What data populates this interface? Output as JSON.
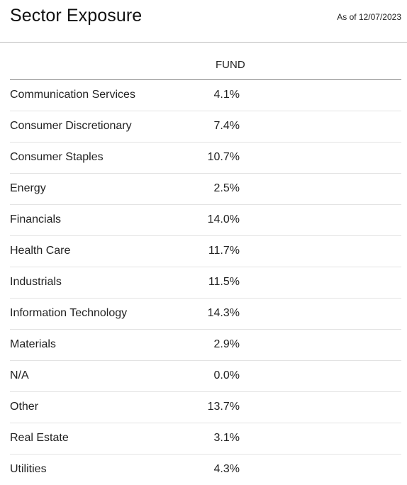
{
  "header": {
    "title": "Sector Exposure",
    "as_of": "As of 12/07/2023"
  },
  "table": {
    "column_header": "FUND",
    "rows": [
      {
        "sector": "Communication Services",
        "value": "4.1%"
      },
      {
        "sector": "Consumer Discretionary",
        "value": "7.4%"
      },
      {
        "sector": "Consumer Staples",
        "value": "10.7%"
      },
      {
        "sector": "Energy",
        "value": "2.5%"
      },
      {
        "sector": "Financials",
        "value": "14.0%"
      },
      {
        "sector": "Health Care",
        "value": "11.7%"
      },
      {
        "sector": "Industrials",
        "value": "11.5%"
      },
      {
        "sector": "Information Technology",
        "value": "14.3%"
      },
      {
        "sector": "Materials",
        "value": "2.9%"
      },
      {
        "sector": "N/A",
        "value": "0.0%"
      },
      {
        "sector": "Other",
        "value": "13.7%"
      },
      {
        "sector": "Real Estate",
        "value": "3.1%"
      },
      {
        "sector": "Utilities",
        "value": "4.3%"
      }
    ]
  }
}
